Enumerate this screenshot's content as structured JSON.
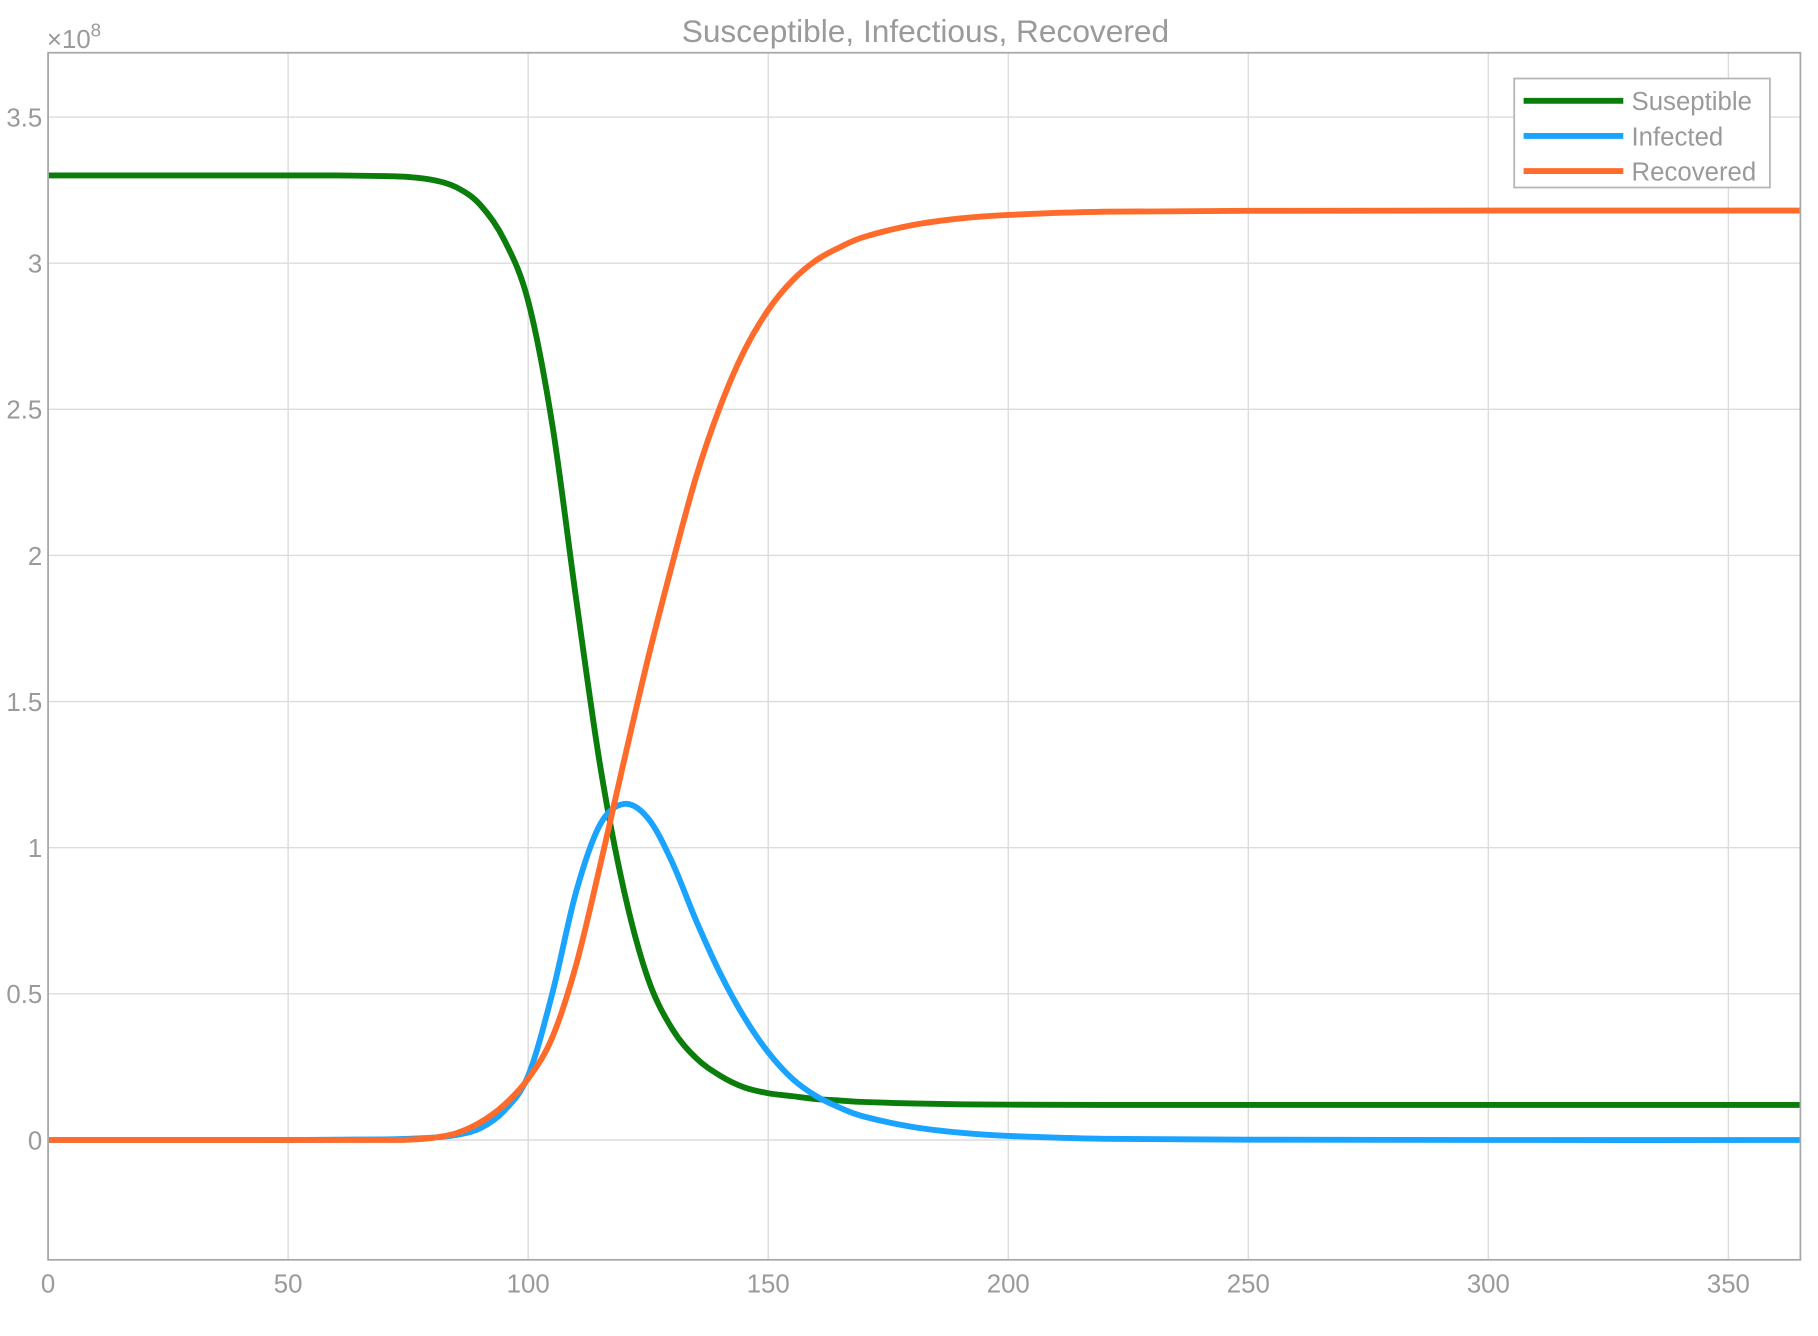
{
  "chart_data": {
    "type": "line",
    "title": "Susceptible, Infectious, Recovered",
    "xlabel": "",
    "ylabel": "",
    "y_exponent_label": "×10^8",
    "y_exponent_base": "×10",
    "y_exponent_power": "8",
    "xlim": [
      0,
      365
    ],
    "ylim": [
      -0.41,
      3.72
    ],
    "grid": true,
    "legend_position": "top-right",
    "x_ticks": [
      "0",
      "50",
      "100",
      "150",
      "200",
      "250",
      "300",
      "350"
    ],
    "y_ticks": [
      "0",
      "0.5",
      "1",
      "1.5",
      "2",
      "2.5",
      "3",
      "3.5"
    ],
    "x": [
      0,
      10,
      20,
      30,
      40,
      50,
      60,
      70,
      75,
      80,
      85,
      90,
      95,
      100,
      105,
      110,
      115,
      120,
      125,
      130,
      135,
      140,
      145,
      150,
      155,
      160,
      165,
      170,
      180,
      190,
      200,
      220,
      250,
      300,
      365
    ],
    "series": [
      {
        "name": "Suseptible",
        "color": "#0a7d0a",
        "values": [
          3.3,
          3.3,
          3.3,
          3.3,
          3.3,
          3.3,
          3.3,
          3.298,
          3.295,
          3.285,
          3.26,
          3.2,
          3.08,
          2.87,
          2.45,
          1.85,
          1.28,
          0.85,
          0.55,
          0.38,
          0.28,
          0.22,
          0.18,
          0.16,
          0.15,
          0.14,
          0.135,
          0.13,
          0.125,
          0.122,
          0.121,
          0.12,
          0.12,
          0.12,
          0.12
        ]
      },
      {
        "name": "Infected",
        "color": "#1aa3ff",
        "values": [
          0,
          0,
          0,
          0,
          0,
          0,
          0.001,
          0.002,
          0.004,
          0.008,
          0.017,
          0.04,
          0.1,
          0.22,
          0.5,
          0.85,
          1.08,
          1.15,
          1.1,
          0.95,
          0.75,
          0.57,
          0.42,
          0.3,
          0.21,
          0.15,
          0.11,
          0.08,
          0.045,
          0.025,
          0.014,
          0.004,
          0.001,
          0,
          0
        ]
      },
      {
        "name": "Recovered",
        "color": "#ff6b2b",
        "values": [
          0,
          0,
          0,
          0,
          0,
          0,
          0,
          0,
          0.001,
          0.007,
          0.023,
          0.06,
          0.12,
          0.21,
          0.35,
          0.6,
          0.94,
          1.3,
          1.65,
          1.97,
          2.27,
          2.51,
          2.7,
          2.84,
          2.94,
          3.01,
          3.055,
          3.09,
          3.13,
          3.153,
          3.165,
          3.176,
          3.179,
          3.18,
          3.18
        ]
      }
    ]
  }
}
